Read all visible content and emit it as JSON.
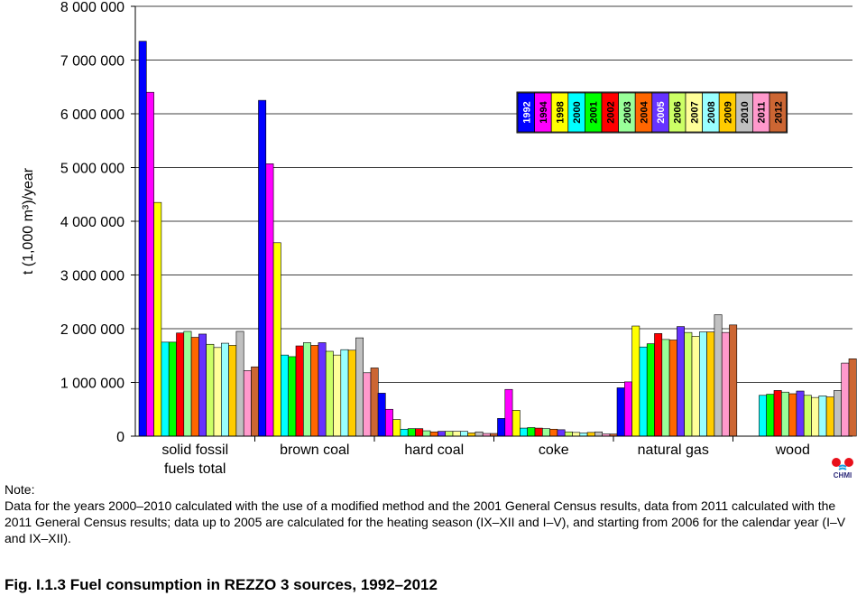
{
  "chart_data": {
    "type": "bar",
    "ylabel": "t (1,000 m³)/year",
    "ylim": [
      0,
      8000000
    ],
    "yticks": [
      0,
      1000000,
      2000000,
      3000000,
      4000000,
      5000000,
      6000000,
      7000000,
      8000000
    ],
    "ytick_labels": [
      "0",
      "1 000 000",
      "2 000 000",
      "3 000 000",
      "4 000 000",
      "5 000 000",
      "6 000 000",
      "7 000 000",
      "8 000 000"
    ],
    "categories": [
      "solid fossil fuels total",
      "brown coal",
      "hard coal",
      "coke",
      "natural gas",
      "wood"
    ],
    "category_labels": [
      [
        "solid fossil",
        "fuels total"
      ],
      [
        "brown coal"
      ],
      [
        "hard coal"
      ],
      [
        "coke"
      ],
      [
        "natural gas"
      ],
      [
        "wood"
      ]
    ],
    "grid": "horizontal",
    "legend_position": "upper-right",
    "series": [
      {
        "name": "1992",
        "color": "#0000ff",
        "values": [
          7350000,
          6250000,
          800000,
          330000,
          900000,
          0
        ]
      },
      {
        "name": "1994",
        "color": "#ff00ff",
        "values": [
          6400000,
          5070000,
          500000,
          870000,
          1010000,
          0
        ]
      },
      {
        "name": "1998",
        "color": "#ffff00",
        "values": [
          4350000,
          3600000,
          310000,
          480000,
          2050000,
          0
        ]
      },
      {
        "name": "2000",
        "color": "#00ffff",
        "values": [
          1750000,
          1510000,
          130000,
          150000,
          1660000,
          760000
        ]
      },
      {
        "name": "2001",
        "color": "#00ff00",
        "values": [
          1750000,
          1480000,
          140000,
          160000,
          1720000,
          780000
        ]
      },
      {
        "name": "2002",
        "color": "#ff0000",
        "values": [
          1920000,
          1680000,
          140000,
          150000,
          1910000,
          850000
        ]
      },
      {
        "name": "2003",
        "color": "#99ff99",
        "values": [
          1950000,
          1740000,
          100000,
          140000,
          1800000,
          820000
        ]
      },
      {
        "name": "2004",
        "color": "#ff6600",
        "values": [
          1840000,
          1690000,
          80000,
          130000,
          1790000,
          790000
        ]
      },
      {
        "name": "2005",
        "color": "#6633ff",
        "values": [
          1900000,
          1740000,
          90000,
          120000,
          2040000,
          840000
        ]
      },
      {
        "name": "2006",
        "color": "#ccff66",
        "values": [
          1710000,
          1580000,
          90000,
          80000,
          1930000,
          760000
        ]
      },
      {
        "name": "2007",
        "color": "#ffff99",
        "values": [
          1650000,
          1510000,
          90000,
          70000,
          1860000,
          720000
        ]
      },
      {
        "name": "2008",
        "color": "#99ffff",
        "values": [
          1730000,
          1610000,
          90000,
          60000,
          1940000,
          750000
        ]
      },
      {
        "name": "2009",
        "color": "#ffcc00",
        "values": [
          1690000,
          1600000,
          60000,
          70000,
          1940000,
          730000
        ]
      },
      {
        "name": "2010",
        "color": "#c0c0c0",
        "values": [
          1950000,
          1830000,
          80000,
          80000,
          2260000,
          850000
        ]
      },
      {
        "name": "2011",
        "color": "#ff99cc",
        "values": [
          1220000,
          1180000,
          50000,
          40000,
          1930000,
          1360000
        ]
      },
      {
        "name": "2012",
        "color": "#cc6633",
        "values": [
          1290000,
          1270000,
          50000,
          40000,
          2070000,
          1440000
        ]
      }
    ]
  },
  "note": {
    "title": "Note:",
    "text": "Data for the years 2000–2010 calculated with the use of a modified method and the 2001 General Census results, data from 2011 calculated with the 2011 General Census results; data up to 2005 are calculated for the heating season (IX–XII and I–V), and starting from 2006 for the calendar year (I–V and IX–XII)."
  },
  "caption": "Fig. I.1.3  Fuel consumption in REZZO 3 sources, 1992–2012",
  "logo_text": "CHMI"
}
